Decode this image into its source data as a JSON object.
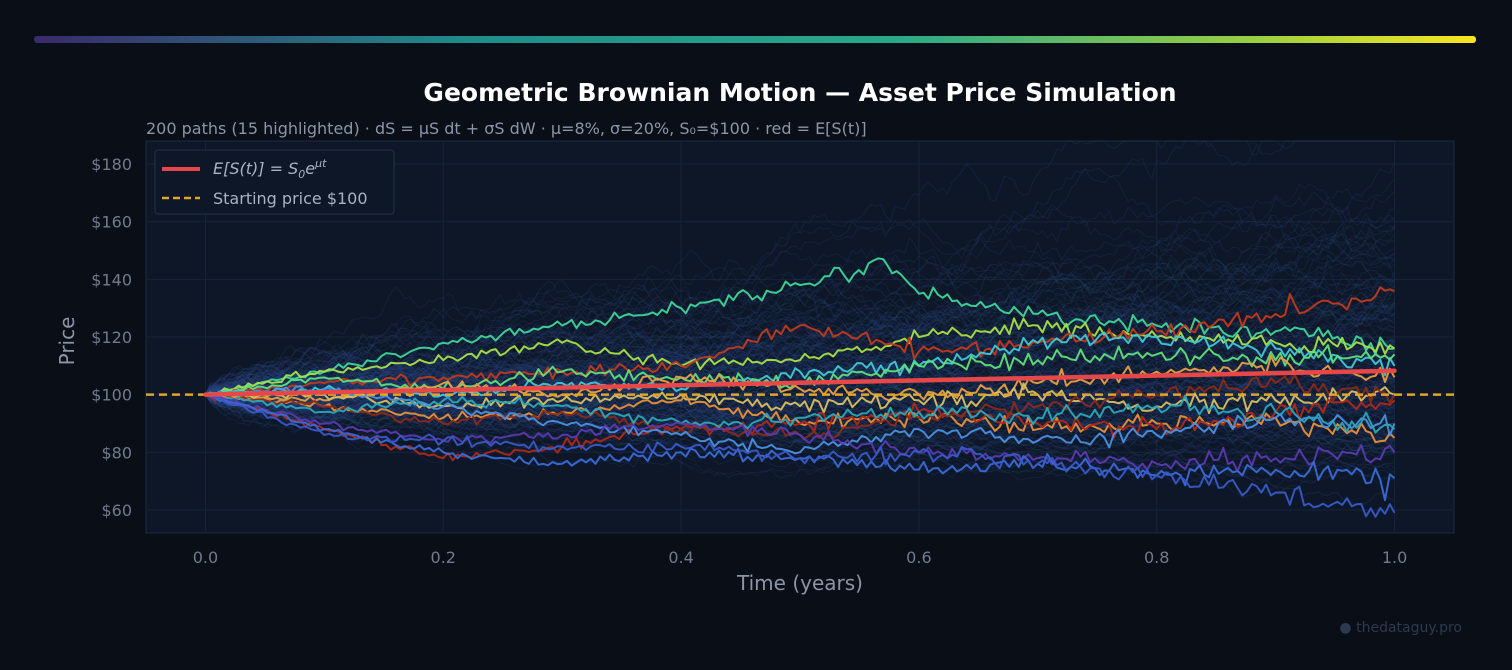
{
  "title": "Geometric Brownian Motion — Asset Price Simulation",
  "subtitle": "200 paths (15 highlighted)  ·  dS = μS dt + σS dW  ·  μ=8%, σ=20%, S₀=$100  ·  red = E[S(t)]",
  "watermark": "● thedataguy.pro",
  "legend": {
    "expected_label_prefix": "E[S(t)] = S",
    "expected_label_sub": "0",
    "expected_label_e": "e",
    "expected_label_sup": "μt",
    "start_label": "Starting price $100"
  },
  "colors": {
    "background": "#0a0e17",
    "plot_bg": "#0e1727",
    "expected": "#e8474a",
    "start": "#e0a52a",
    "bg_paths": "#2b4a8a",
    "text": "#8a96a8",
    "title": "#ffffff"
  },
  "chart_data": {
    "type": "line",
    "title": "Geometric Brownian Motion — Asset Price Simulation",
    "xlabel": "Time (years)",
    "ylabel": "Price",
    "xlim": [
      -0.05,
      1.05
    ],
    "ylim": [
      52,
      188
    ],
    "x_ticks": [
      0.0,
      0.2,
      0.4,
      0.6,
      0.8,
      1.0
    ],
    "x_tick_labels": [
      "0.0",
      "0.2",
      "0.4",
      "0.6",
      "0.8",
      "1.0"
    ],
    "y_ticks": [
      60,
      80,
      100,
      120,
      140,
      160,
      180
    ],
    "y_tick_labels": [
      "$60",
      "$80",
      "$100",
      "$120",
      "$140",
      "$160",
      "$180"
    ],
    "grid": true,
    "legend_position": "top-left",
    "params": {
      "mu": 0.08,
      "sigma": 0.2,
      "S0": 100,
      "paths": 200,
      "highlighted": 15
    },
    "expected": {
      "x": [
        0,
        0.25,
        0.5,
        0.75,
        1.0
      ],
      "y": [
        100,
        102.0,
        104.1,
        106.2,
        108.3
      ]
    },
    "start_price": 100,
    "highlighted_series": [
      {
        "color": "#3ed69a",
        "x": [
          0,
          0.1,
          0.2,
          0.3,
          0.4,
          0.5,
          0.57,
          0.6,
          0.7,
          0.8,
          0.9,
          1.0
        ],
        "y": [
          100,
          108,
          118,
          124,
          130,
          138,
          147,
          135,
          128,
          124,
          122,
          116
        ]
      },
      {
        "color": "#a8e048",
        "x": [
          0,
          0.1,
          0.2,
          0.3,
          0.4,
          0.5,
          0.6,
          0.7,
          0.8,
          0.9,
          1.0
        ],
        "y": [
          100,
          108,
          112,
          118,
          110,
          112,
          120,
          124,
          120,
          118,
          116
        ]
      },
      {
        "color": "#c23a1c",
        "x": [
          0,
          0.1,
          0.2,
          0.3,
          0.4,
          0.5,
          0.6,
          0.7,
          0.8,
          0.9,
          1.0
        ],
        "y": [
          100,
          104,
          106,
          108,
          110,
          124,
          115,
          118,
          122,
          128,
          136
        ]
      },
      {
        "color": "#3fc8d6",
        "x": [
          0,
          0.1,
          0.2,
          0.3,
          0.4,
          0.5,
          0.6,
          0.7,
          0.8,
          0.9,
          1.0
        ],
        "y": [
          100,
          102,
          100,
          104,
          102,
          108,
          110,
          118,
          120,
          116,
          110
        ]
      },
      {
        "color": "#5fe07a",
        "x": [
          0,
          0.1,
          0.2,
          0.3,
          0.4,
          0.5,
          0.6,
          0.7,
          0.8,
          0.9,
          1.0
        ],
        "y": [
          100,
          106,
          102,
          108,
          106,
          104,
          110,
          112,
          114,
          112,
          114
        ]
      },
      {
        "color": "#e8a040",
        "x": [
          0,
          0.1,
          0.2,
          0.3,
          0.4,
          0.5,
          0.6,
          0.7,
          0.8,
          0.9,
          1.0
        ],
        "y": [
          100,
          98,
          104,
          100,
          106,
          102,
          100,
          104,
          108,
          110,
          106
        ]
      },
      {
        "color": "#d8c060",
        "x": [
          0,
          0.1,
          0.2,
          0.3,
          0.4,
          0.5,
          0.6,
          0.7,
          0.8,
          0.9,
          1.0
        ],
        "y": [
          100,
          100,
          96,
          98,
          100,
          96,
          98,
          100,
          96,
          98,
          100
        ]
      },
      {
        "color": "#e89038",
        "x": [
          0,
          0.1,
          0.2,
          0.3,
          0.4,
          0.5,
          0.6,
          0.7,
          0.8,
          0.9,
          1.0
        ],
        "y": [
          100,
          96,
          92,
          94,
          98,
          90,
          92,
          88,
          90,
          92,
          85
        ]
      },
      {
        "color": "#b02818",
        "x": [
          0,
          0.1,
          0.2,
          0.3,
          0.4,
          0.5,
          0.6,
          0.7,
          0.8,
          0.9,
          1.0
        ],
        "y": [
          100,
          88,
          78,
          82,
          88,
          90,
          94,
          90,
          88,
          94,
          98
        ]
      },
      {
        "color": "#8a2a1a",
        "x": [
          0,
          0.1,
          0.2,
          0.3,
          0.4,
          0.5,
          0.6,
          0.7,
          0.8,
          0.9,
          1.0
        ],
        "y": [
          100,
          96,
          90,
          94,
          88,
          86,
          92,
          96,
          100,
          104,
          100
        ]
      },
      {
        "color": "#4a90e0",
        "x": [
          0,
          0.1,
          0.2,
          0.3,
          0.4,
          0.5,
          0.6,
          0.7,
          0.8,
          0.9,
          1.0
        ],
        "y": [
          100,
          102,
          96,
          90,
          86,
          80,
          88,
          84,
          86,
          92,
          90
        ]
      },
      {
        "color": "#2aa8b8",
        "x": [
          0,
          0.1,
          0.2,
          0.3,
          0.4,
          0.5,
          0.6,
          0.7,
          0.8,
          0.9,
          1.0
        ],
        "y": [
          100,
          94,
          98,
          96,
          90,
          92,
          94,
          92,
          96,
          94,
          88
        ]
      },
      {
        "color": "#5a3ab0",
        "x": [
          0,
          0.1,
          0.2,
          0.3,
          0.4,
          0.5,
          0.6,
          0.7,
          0.8,
          0.9,
          1.0
        ],
        "y": [
          100,
          90,
          84,
          86,
          90,
          86,
          80,
          78,
          76,
          78,
          80
        ]
      },
      {
        "color": "#3a6ad8",
        "x": [
          0,
          0.1,
          0.2,
          0.3,
          0.4,
          0.5,
          0.6,
          0.7,
          0.8,
          0.9,
          1.0
        ],
        "y": [
          100,
          88,
          80,
          76,
          80,
          78,
          74,
          76,
          72,
          74,
          71
        ]
      },
      {
        "color": "#3858c8",
        "x": [
          0,
          0.1,
          0.2,
          0.3,
          0.4,
          0.5,
          0.6,
          0.7,
          0.8,
          0.9,
          1.0
        ],
        "y": [
          100,
          86,
          84,
          82,
          82,
          78,
          80,
          76,
          72,
          66,
          59
        ]
      }
    ]
  }
}
